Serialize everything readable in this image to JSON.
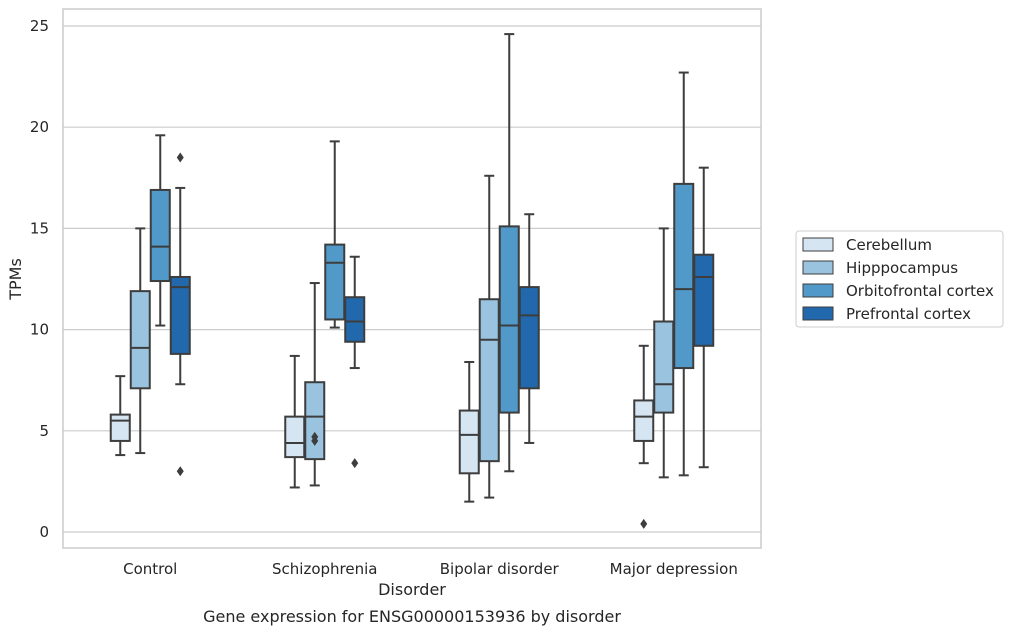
{
  "chart_data": {
    "type": "box",
    "caption": "Gene expression for ENSG00000153936 by disorder",
    "xlabel": "Disorder",
    "ylabel": "TPMs",
    "ylim": [
      -0.7,
      25.8
    ],
    "yticks": [
      "0",
      "5",
      "10",
      "15",
      "20",
      "25"
    ],
    "grid": true,
    "legend_position": "right, outside plot",
    "categories": [
      "Control",
      "Schizophrenia",
      "Bipolar disorder",
      "Major depression"
    ],
    "series": [
      {
        "name": "Cerebellum",
        "color": "#d6e5f2",
        "boxes": [
          {
            "whisker_low": 3.8,
            "q1": 4.5,
            "median": 5.5,
            "q3": 5.8,
            "whisker_high": 7.7,
            "outliers": []
          },
          {
            "whisker_low": 2.2,
            "q1": 3.7,
            "median": 4.4,
            "q3": 5.7,
            "whisker_high": 8.7,
            "outliers": []
          },
          {
            "whisker_low": 1.5,
            "q1": 2.9,
            "median": 4.8,
            "q3": 6.0,
            "whisker_high": 8.4,
            "outliers": []
          },
          {
            "whisker_low": 3.4,
            "q1": 4.5,
            "median": 5.7,
            "q3": 6.5,
            "whisker_high": 9.2,
            "outliers": [
              0.4
            ]
          }
        ]
      },
      {
        "name": "Hipppocampus",
        "color": "#9ac3df",
        "boxes": [
          {
            "whisker_low": 3.9,
            "q1": 7.1,
            "median": 9.1,
            "q3": 11.9,
            "whisker_high": 15.0,
            "outliers": []
          },
          {
            "whisker_low": 2.3,
            "q1": 3.6,
            "median": 5.7,
            "q3": 7.4,
            "whisker_high": 12.3,
            "outliers": [
              4.5,
              4.7
            ]
          },
          {
            "whisker_low": 1.7,
            "q1": 3.5,
            "median": 9.5,
            "q3": 11.5,
            "whisker_high": 17.6,
            "outliers": []
          },
          {
            "whisker_low": 2.7,
            "q1": 5.9,
            "median": 7.3,
            "q3": 10.4,
            "whisker_high": 15.0,
            "outliers": []
          }
        ]
      },
      {
        "name": "Orbitofrontal cortex",
        "color": "#5099c9",
        "boxes": [
          {
            "whisker_low": 10.2,
            "q1": 12.4,
            "median": 14.1,
            "q3": 16.9,
            "whisker_high": 19.6,
            "outliers": []
          },
          {
            "whisker_low": 10.1,
            "q1": 10.5,
            "median": 13.3,
            "q3": 14.2,
            "whisker_high": 19.3,
            "outliers": []
          },
          {
            "whisker_low": 3.0,
            "q1": 5.9,
            "median": 10.2,
            "q3": 15.1,
            "whisker_high": 24.6,
            "outliers": []
          },
          {
            "whisker_low": 2.8,
            "q1": 8.1,
            "median": 12.0,
            "q3": 17.2,
            "whisker_high": 22.7,
            "outliers": []
          }
        ]
      },
      {
        "name": "Prefrontal cortex",
        "color": "#2168ad",
        "boxes": [
          {
            "whisker_low": 7.3,
            "q1": 8.8,
            "median": 12.1,
            "q3": 12.6,
            "whisker_high": 17.0,
            "outliers": [
              3.0,
              18.5
            ]
          },
          {
            "whisker_low": 8.1,
            "q1": 9.4,
            "median": 10.4,
            "q3": 11.6,
            "whisker_high": 13.6,
            "outliers": [
              3.4
            ]
          },
          {
            "whisker_low": 4.4,
            "q1": 7.1,
            "median": 10.7,
            "q3": 12.1,
            "whisker_high": 15.7,
            "outliers": []
          },
          {
            "whisker_low": 3.2,
            "q1": 9.2,
            "median": 12.6,
            "q3": 13.7,
            "whisker_high": 18.0,
            "outliers": []
          }
        ]
      }
    ]
  }
}
